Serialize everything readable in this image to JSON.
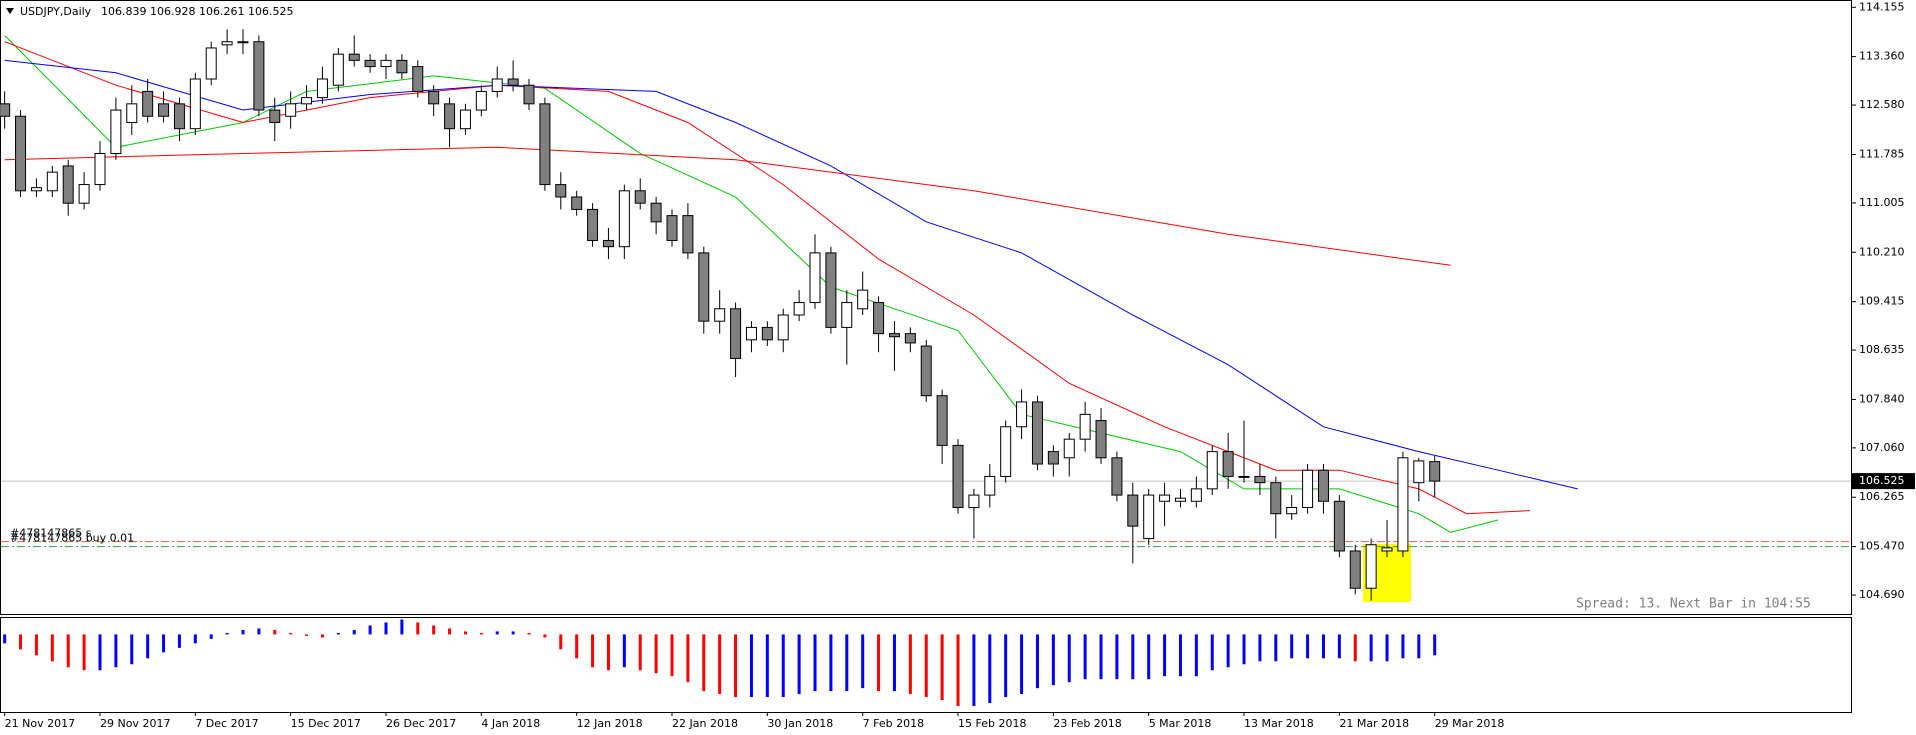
{
  "chart_data": {
    "type": "candlestick",
    "symbol": "USDJPY,Daily",
    "header_values": [
      106.839,
      106.928,
      106.261,
      106.525
    ],
    "categories": [
      "21 Nov 2017",
      null,
      null,
      null,
      null,
      null,
      "29 Nov 2017",
      null,
      null,
      null,
      null,
      null,
      "7 Dec 2017",
      null,
      null,
      null,
      null,
      null,
      "15 Dec 2017",
      null,
      null,
      null,
      null,
      null,
      "26 Dec 2017",
      null,
      null,
      null,
      null,
      null,
      "4 Jan 2018",
      null,
      null,
      null,
      null,
      null,
      "12 Jan 2018",
      null,
      null,
      null,
      null,
      null,
      "22 Jan 2018",
      null,
      null,
      null,
      null,
      null,
      "30 Jan 2018",
      null,
      null,
      null,
      null,
      null,
      "7 Feb 2018",
      null,
      null,
      null,
      null,
      null,
      "15 Feb 2018",
      null,
      null,
      null,
      null,
      null,
      "23 Feb 2018",
      null,
      null,
      null,
      null,
      null,
      "5 Mar 2018",
      null,
      null,
      null,
      null,
      null,
      "13 Mar 2018",
      null,
      null,
      null,
      null,
      null,
      "21 Mar 2018",
      null,
      null,
      null,
      null,
      null,
      "29 Mar 2018"
    ],
    "open": [
      112.6,
      112.4,
      111.2,
      111.2,
      111.6,
      111.0,
      111.3,
      111.8,
      112.3,
      112.8,
      112.6,
      112.6,
      112.2,
      113.0,
      113.55,
      113.6,
      113.6,
      112.5,
      112.4,
      112.6,
      112.7,
      112.9,
      113.4,
      113.3,
      113.2,
      113.3,
      113.2,
      112.8,
      112.6,
      112.2,
      112.5,
      112.8,
      113.0,
      112.9,
      112.6,
      111.3,
      111.1,
      110.9,
      110.4,
      110.3,
      111.2,
      111.0,
      110.8,
      110.8,
      110.2,
      109.1,
      109.3,
      108.8,
      109.0,
      108.8,
      109.2,
      109.4,
      110.2,
      109.0,
      109.3,
      109.4,
      108.9,
      108.9,
      108.7,
      107.9,
      107.1,
      106.1,
      106.3,
      106.6,
      107.4,
      107.8,
      107.0,
      106.9,
      107.2,
      107.5,
      106.9,
      106.3,
      105.6,
      106.2,
      106.2,
      106.2,
      106.4,
      107.0,
      106.6,
      106.6,
      106.5,
      106.0,
      106.1,
      106.7,
      106.2,
      105.4,
      104.8,
      105.4,
      105.4,
      106.5,
      106.839
    ],
    "high": [
      112.8,
      112.5,
      111.4,
      111.6,
      111.7,
      111.5,
      112.0,
      112.7,
      112.9,
      113.0,
      112.8,
      112.7,
      113.1,
      113.6,
      113.8,
      113.8,
      113.7,
      112.7,
      112.8,
      112.9,
      113.2,
      113.5,
      113.7,
      113.4,
      113.4,
      113.4,
      113.3,
      112.9,
      112.7,
      112.6,
      112.9,
      113.2,
      113.3,
      113.0,
      112.7,
      111.5,
      111.2,
      111.0,
      110.6,
      111.3,
      111.4,
      111.1,
      110.9,
      111.0,
      110.3,
      109.6,
      109.4,
      109.1,
      109.1,
      109.3,
      109.6,
      110.5,
      110.3,
      109.6,
      109.9,
      109.5,
      109.1,
      109.0,
      108.8,
      108.0,
      107.2,
      106.4,
      106.8,
      107.5,
      108.0,
      107.9,
      107.1,
      107.3,
      107.8,
      107.7,
      107.0,
      106.5,
      106.4,
      106.5,
      106.4,
      106.6,
      107.1,
      107.3,
      107.5,
      106.8,
      106.6,
      106.3,
      106.8,
      106.8,
      106.3,
      105.5,
      105.6,
      105.9,
      107.0,
      106.9,
      106.928
    ],
    "low": [
      112.2,
      111.1,
      111.1,
      111.1,
      110.8,
      110.9,
      111.2,
      111.7,
      112.1,
      112.3,
      112.3,
      112.0,
      112.1,
      112.9,
      113.4,
      113.4,
      112.4,
      112.0,
      112.2,
      112.5,
      112.6,
      112.8,
      113.2,
      113.1,
      113.0,
      113.0,
      112.7,
      112.4,
      111.9,
      112.1,
      112.4,
      112.7,
      112.8,
      112.5,
      111.2,
      110.9,
      110.8,
      110.3,
      110.1,
      110.1,
      110.9,
      110.5,
      110.3,
      110.1,
      108.9,
      108.9,
      108.2,
      108.6,
      108.7,
      108.6,
      109.1,
      109.3,
      108.9,
      108.4,
      109.2,
      108.6,
      108.3,
      108.6,
      107.8,
      106.8,
      106.0,
      105.6,
      106.1,
      106.5,
      107.2,
      106.7,
      106.6,
      106.6,
      107.0,
      106.8,
      106.2,
      105.2,
      105.5,
      105.8,
      106.1,
      106.1,
      106.3,
      106.4,
      106.5,
      106.3,
      105.6,
      105.9,
      106.0,
      106.0,
      105.3,
      104.7,
      104.6,
      105.3,
      105.3,
      106.2,
      106.261
    ],
    "close": [
      112.4,
      111.2,
      111.25,
      111.5,
      111.0,
      111.3,
      111.8,
      112.5,
      112.6,
      112.4,
      112.4,
      112.2,
      113.0,
      113.5,
      113.6,
      113.6,
      112.5,
      112.3,
      112.6,
      112.7,
      113.0,
      113.4,
      113.3,
      113.2,
      113.3,
      113.1,
      112.8,
      112.6,
      112.2,
      112.5,
      112.8,
      113.0,
      112.9,
      112.6,
      111.3,
      111.1,
      110.9,
      110.4,
      110.3,
      111.2,
      111.0,
      110.7,
      110.4,
      110.2,
      109.1,
      109.3,
      108.5,
      109.0,
      108.8,
      109.2,
      109.4,
      110.2,
      109.0,
      109.4,
      109.6,
      108.9,
      108.85,
      108.75,
      107.9,
      107.1,
      106.1,
      106.3,
      106.6,
      107.4,
      107.8,
      106.8,
      106.8,
      107.2,
      107.6,
      106.9,
      106.3,
      105.8,
      106.3,
      106.3,
      106.25,
      106.4,
      107.0,
      106.6,
      106.6,
      106.5,
      106.0,
      106.1,
      106.7,
      106.2,
      105.4,
      104.8,
      105.5,
      105.45,
      106.9,
      106.85,
      106.525
    ],
    "up_color": "#ffffff",
    "down_color": "#808080",
    "xlim": [
      -0.23,
      116.2
    ],
    "ylim": [
      104.385,
      114.256
    ],
    "yticks": [
      114.155,
      {
        "value": 113.36,
        "label": "113.360"
      },
      {
        "value": 112.58,
        "label": "112.580"
      },
      111.785,
      111.005,
      {
        "value": 110.21,
        "label": "110.210"
      },
      109.415,
      108.635,
      {
        "value": 107.84,
        "label": "107.840"
      },
      {
        "value": 107.06,
        "label": "107.060"
      },
      106.265,
      {
        "value": 105.47,
        "label": "105.470"
      },
      {
        "value": 104.69,
        "label": "104.690"
      }
    ],
    "last_price": 106.525,
    "orders": [
      {
        "label": "#478147865 s",
        "price": 105.55,
        "color": "#e0603a"
      },
      {
        "label": "#478147865 buy 0.01",
        "price": 105.47,
        "color": "#2e9e3e"
      }
    ],
    "moving_averages": [
      {
        "color": "#00c800",
        "x": [
          0,
          7,
          15,
          19,
          27,
          34,
          40,
          46,
          52,
          60,
          64,
          69,
          74,
          78,
          84,
          89,
          91,
          94
        ],
        "values": [
          113.7,
          111.9,
          112.3,
          112.8,
          113.05,
          112.85,
          111.8,
          111.1,
          109.65,
          108.95,
          107.6,
          107.3,
          107.0,
          106.4,
          106.4,
          106.0,
          105.7,
          105.9
        ]
      },
      {
        "color": "#ff0000",
        "x": [
          0,
          7,
          15,
          23,
          31,
          38,
          43,
          49,
          55,
          61,
          67,
          73,
          80,
          84,
          89,
          92,
          96
        ],
        "values": [
          113.6,
          112.9,
          112.3,
          112.7,
          112.9,
          112.8,
          112.3,
          111.3,
          110.1,
          109.2,
          108.1,
          107.4,
          106.7,
          106.7,
          106.4,
          106.0,
          106.05
        ]
      },
      {
        "color": "#0000ff",
        "x": [
          0,
          7,
          15,
          23,
          31,
          41,
          46,
          52,
          58,
          64,
          71,
          77,
          83,
          89,
          94,
          99
        ],
        "values": [
          113.3,
          113.1,
          112.5,
          112.75,
          112.9,
          112.8,
          112.3,
          111.6,
          110.7,
          110.2,
          109.2,
          108.4,
          107.4,
          107.0,
          106.7,
          106.4
        ]
      },
      {
        "color": "#ff0000",
        "x": [
          0,
          15,
          31,
          46,
          61,
          77,
          91
        ],
        "values": [
          111.7,
          111.8,
          111.9,
          111.7,
          111.2,
          110.5,
          110.0
        ]
      }
    ],
    "histogram": {
      "up_color": "#0000ff",
      "down_color": "#ff0000",
      "ylim": [
        -2.6,
        0.55
      ],
      "values": [
        -0.3,
        -0.5,
        -0.7,
        -0.9,
        -1.1,
        -1.2,
        -1.2,
        -1.1,
        -1.0,
        -0.8,
        -0.6,
        -0.45,
        -0.3,
        -0.15,
        0.05,
        0.15,
        0.2,
        0.15,
        0.05,
        -0.05,
        -0.1,
        0.05,
        0.15,
        0.3,
        0.4,
        0.5,
        0.4,
        0.3,
        0.2,
        0.1,
        0.05,
        0.1,
        0.1,
        0.05,
        -0.1,
        -0.5,
        -0.8,
        -1.1,
        -1.2,
        -1.1,
        -1.2,
        -1.3,
        -1.4,
        -1.6,
        -1.9,
        -2.0,
        -2.1,
        -2.1,
        -2.1,
        -2.1,
        -2.0,
        -1.9,
        -1.9,
        -1.9,
        -1.8,
        -1.9,
        -1.9,
        -2.0,
        -2.1,
        -2.2,
        -2.4,
        -2.4,
        -2.3,
        -2.1,
        -2.0,
        -1.8,
        -1.7,
        -1.6,
        -1.5,
        -1.5,
        -1.5,
        -1.5,
        -1.5,
        -1.4,
        -1.4,
        -1.4,
        -1.2,
        -1.1,
        -1.0,
        -0.9,
        -0.9,
        -0.8,
        -0.8,
        -0.8,
        -0.8,
        -0.9,
        -0.9,
        -0.9,
        -0.8,
        -0.8,
        -0.7
      ]
    },
    "status": "Spread: 13. Next Bar in 104:55"
  }
}
